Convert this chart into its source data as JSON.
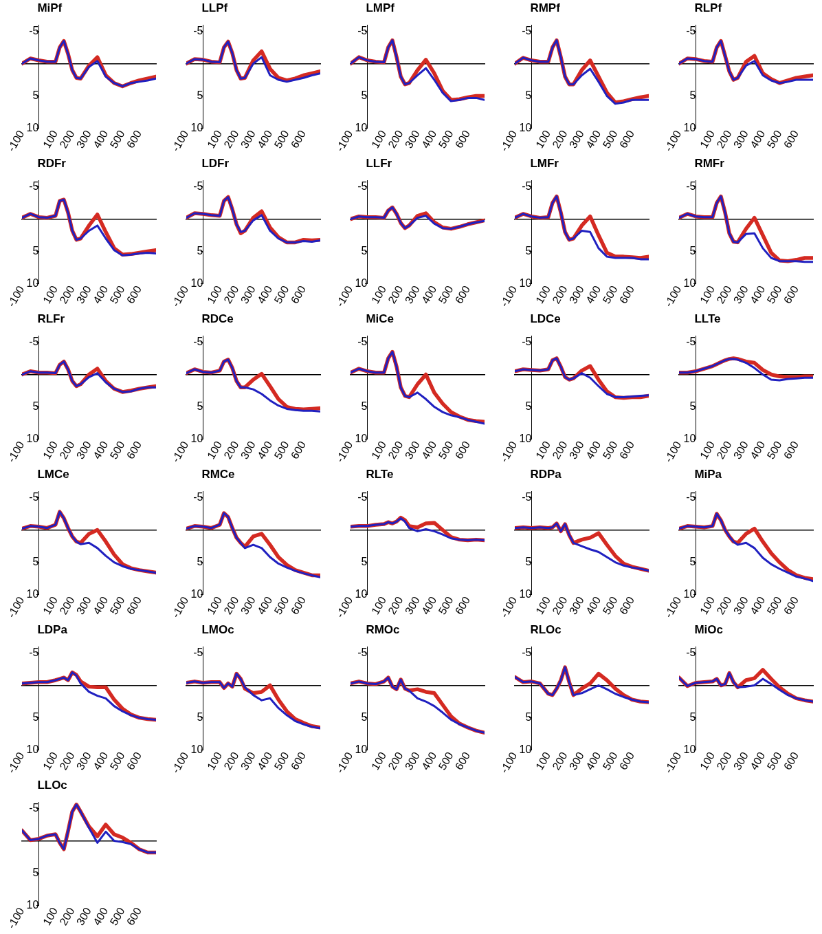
{
  "chart_data": [
    {
      "type": "line",
      "title": "MiPf",
      "x": [
        -100,
        -50,
        0,
        50,
        100,
        125,
        150,
        175,
        200,
        225,
        250,
        300,
        350,
        400,
        450,
        500,
        550,
        600,
        650,
        700
      ],
      "xlim": [
        -100,
        700
      ],
      "xticks": [
        -100,
        100,
        200,
        300,
        400,
        500,
        600
      ],
      "ylim": [
        10,
        -6
      ],
      "yticks": [
        -5,
        5,
        10
      ],
      "series": [
        {
          "color": "#d42a22",
          "values": [
            0,
            -0.8,
            -0.5,
            -0.3,
            -0.3,
            -2.5,
            -3.5,
            -1.5,
            1.0,
            2.2,
            2.3,
            0.3,
            -1.0,
            1.8,
            3.0,
            3.5,
            3.0,
            2.6,
            2.3,
            2.0
          ]
        },
        {
          "color": "#2020c0",
          "values": [
            0,
            -0.8,
            -0.5,
            -0.3,
            -0.3,
            -2.5,
            -3.5,
            -1.5,
            1.0,
            2.2,
            2.3,
            0.5,
            -0.4,
            2.0,
            3.0,
            3.5,
            3.0,
            2.8,
            2.6,
            2.3
          ]
        }
      ]
    },
    {
      "type": "line",
      "title": "LLPf",
      "x": [
        -100,
        -50,
        0,
        50,
        100,
        125,
        150,
        175,
        200,
        225,
        250,
        300,
        350,
        400,
        450,
        500,
        550,
        600,
        650,
        700
      ],
      "xlim": [
        -100,
        700
      ],
      "xticks": [
        -100,
        100,
        200,
        300,
        400,
        500,
        600
      ],
      "ylim": [
        10,
        -6
      ],
      "yticks": [
        -5,
        5,
        10
      ],
      "series": [
        {
          "color": "#d42a22",
          "values": [
            0,
            -0.7,
            -0.6,
            -0.3,
            -0.2,
            -2.5,
            -3.4,
            -1.6,
            1.0,
            2.3,
            2.2,
            -0.5,
            -1.9,
            0.8,
            2.2,
            2.6,
            2.3,
            1.8,
            1.5,
            1.2
          ]
        },
        {
          "color": "#2020c0",
          "values": [
            0,
            -0.7,
            -0.6,
            -0.3,
            -0.2,
            -2.5,
            -3.4,
            -1.6,
            1.0,
            2.3,
            2.2,
            0.0,
            -1.0,
            1.8,
            2.5,
            2.8,
            2.5,
            2.2,
            1.8,
            1.5
          ]
        }
      ]
    },
    {
      "type": "line",
      "title": "LMPf",
      "x": [
        -100,
        -50,
        0,
        50,
        100,
        125,
        150,
        175,
        200,
        225,
        250,
        300,
        350,
        400,
        450,
        500,
        550,
        600,
        650,
        700
      ],
      "xlim": [
        -100,
        700
      ],
      "xticks": [
        -100,
        100,
        200,
        300,
        400,
        500,
        600
      ],
      "ylim": [
        10,
        -6
      ],
      "yticks": [
        -5,
        5,
        10
      ],
      "series": [
        {
          "color": "#d42a22",
          "values": [
            0,
            -1.0,
            -0.5,
            -0.3,
            -0.2,
            -2.5,
            -3.6,
            -1.0,
            2.0,
            3.2,
            3.0,
            1.0,
            -0.6,
            1.5,
            4.2,
            5.6,
            5.5,
            5.2,
            5.0,
            5.0
          ]
        },
        {
          "color": "#2020c0",
          "values": [
            0,
            -1.0,
            -0.5,
            -0.3,
            -0.2,
            -2.5,
            -3.6,
            -1.0,
            2.0,
            3.2,
            3.0,
            1.8,
            0.7,
            2.5,
            4.5,
            5.8,
            5.6,
            5.3,
            5.3,
            5.6
          ]
        }
      ]
    },
    {
      "type": "line",
      "title": "RMPf",
      "x": [
        -100,
        -50,
        0,
        50,
        100,
        125,
        150,
        175,
        200,
        225,
        250,
        300,
        350,
        400,
        450,
        500,
        550,
        600,
        650,
        700
      ],
      "xlim": [
        -100,
        700
      ],
      "xticks": [
        -100,
        100,
        200,
        300,
        400,
        500,
        600
      ],
      "ylim": [
        10,
        -6
      ],
      "yticks": [
        -5,
        5,
        10
      ],
      "series": [
        {
          "color": "#d42a22",
          "values": [
            0,
            -0.9,
            -0.5,
            -0.3,
            -0.3,
            -2.5,
            -3.6,
            -1.0,
            2.0,
            3.2,
            3.2,
            1.0,
            -0.5,
            2.0,
            4.5,
            6.0,
            5.8,
            5.5,
            5.2,
            5.0
          ]
        },
        {
          "color": "#2020c0",
          "values": [
            0,
            -0.9,
            -0.5,
            -0.3,
            -0.3,
            -2.5,
            -3.6,
            -1.0,
            2.0,
            3.2,
            3.2,
            1.8,
            0.8,
            2.8,
            5.0,
            6.2,
            6.0,
            5.6,
            5.6,
            5.6
          ]
        }
      ]
    },
    {
      "type": "line",
      "title": "RLPf",
      "x": [
        -100,
        -50,
        0,
        50,
        100,
        125,
        150,
        175,
        200,
        225,
        250,
        300,
        350,
        400,
        450,
        500,
        550,
        600,
        650,
        700
      ],
      "xlim": [
        -100,
        700
      ],
      "xticks": [
        -100,
        100,
        200,
        300,
        400,
        500,
        600
      ],
      "ylim": [
        10,
        -6
      ],
      "yticks": [
        -5,
        5,
        10
      ],
      "series": [
        {
          "color": "#d42a22",
          "values": [
            0,
            -0.8,
            -0.7,
            -0.4,
            -0.3,
            -2.5,
            -3.5,
            -1.2,
            1.2,
            2.5,
            2.2,
            -0.3,
            -1.2,
            1.5,
            2.4,
            3.0,
            2.6,
            2.2,
            2.0,
            1.8
          ]
        },
        {
          "color": "#2020c0",
          "values": [
            0,
            -0.8,
            -0.7,
            -0.4,
            -0.3,
            -2.5,
            -3.5,
            -1.2,
            1.2,
            2.5,
            2.2,
            0.3,
            -0.4,
            1.8,
            2.6,
            3.0,
            2.8,
            2.5,
            2.5,
            2.5
          ]
        }
      ]
    },
    {
      "type": "line",
      "title": "RDFr",
      "x": [
        -100,
        -50,
        0,
        50,
        100,
        125,
        150,
        175,
        200,
        225,
        250,
        300,
        350,
        400,
        450,
        500,
        550,
        600,
        650,
        700
      ],
      "xlim": [
        -100,
        700
      ],
      "xticks": [
        -100,
        100,
        200,
        300,
        400,
        500,
        600
      ],
      "ylim": [
        10,
        -6
      ],
      "yticks": [
        -5,
        5,
        10
      ],
      "series": [
        {
          "color": "#d42a22",
          "values": [
            -0.2,
            -0.8,
            -0.3,
            -0.2,
            -0.5,
            -2.8,
            -3.0,
            -1.0,
            1.8,
            3.2,
            3.0,
            1.0,
            -0.7,
            2.0,
            4.5,
            5.5,
            5.4,
            5.2,
            5.0,
            4.8
          ]
        },
        {
          "color": "#2020c0",
          "values": [
            -0.2,
            -0.8,
            -0.3,
            -0.2,
            -0.5,
            -2.8,
            -3.0,
            -1.0,
            1.8,
            3.2,
            3.0,
            1.8,
            1.0,
            3.0,
            4.8,
            5.6,
            5.5,
            5.3,
            5.2,
            5.3
          ]
        }
      ]
    },
    {
      "type": "line",
      "title": "LDFr",
      "x": [
        -100,
        -50,
        0,
        50,
        100,
        125,
        150,
        175,
        200,
        225,
        250,
        300,
        350,
        400,
        450,
        500,
        550,
        600,
        650,
        700
      ],
      "xlim": [
        -100,
        700
      ],
      "xticks": [
        -100,
        100,
        200,
        300,
        400,
        500,
        600
      ],
      "ylim": [
        10,
        -6
      ],
      "yticks": [
        -5,
        5,
        10
      ],
      "series": [
        {
          "color": "#d42a22",
          "values": [
            -0.2,
            -0.9,
            -0.8,
            -0.6,
            -0.5,
            -2.8,
            -3.4,
            -1.5,
            0.8,
            2.2,
            1.8,
            -0.2,
            -1.2,
            1.3,
            2.8,
            3.6,
            3.6,
            3.2,
            3.3,
            3.2
          ]
        },
        {
          "color": "#2020c0",
          "values": [
            -0.2,
            -0.9,
            -0.8,
            -0.6,
            -0.5,
            -2.8,
            -3.4,
            -1.5,
            0.8,
            2.0,
            1.8,
            0.2,
            -0.6,
            1.8,
            3.0,
            3.6,
            3.6,
            3.4,
            3.5,
            3.3
          ]
        }
      ]
    },
    {
      "type": "line",
      "title": "LLFr",
      "x": [
        -100,
        -50,
        0,
        50,
        100,
        125,
        150,
        175,
        200,
        225,
        250,
        300,
        350,
        400,
        450,
        500,
        550,
        600,
        650,
        700
      ],
      "xlim": [
        -100,
        700
      ],
      "xticks": [
        -100,
        100,
        200,
        300,
        400,
        500,
        600
      ],
      "ylim": [
        10,
        -6
      ],
      "yticks": [
        -5,
        5,
        10
      ],
      "series": [
        {
          "color": "#d42a22",
          "values": [
            0,
            -0.4,
            -0.3,
            -0.3,
            -0.2,
            -1.3,
            -1.8,
            -0.8,
            0.6,
            1.4,
            1.0,
            -0.5,
            -0.9,
            0.5,
            1.3,
            1.5,
            1.2,
            0.8,
            0.5,
            0.2
          ]
        },
        {
          "color": "#2020c0",
          "values": [
            0,
            -0.4,
            -0.3,
            -0.3,
            -0.2,
            -1.3,
            -1.8,
            -0.8,
            0.6,
            1.4,
            1.0,
            -0.2,
            -0.5,
            0.7,
            1.4,
            1.5,
            1.2,
            0.8,
            0.5,
            0.3
          ]
        }
      ]
    },
    {
      "type": "line",
      "title": "LMFr",
      "x": [
        -100,
        -50,
        0,
        50,
        100,
        125,
        150,
        175,
        200,
        225,
        250,
        300,
        350,
        400,
        450,
        500,
        550,
        600,
        650,
        700
      ],
      "xlim": [
        -100,
        700
      ],
      "xticks": [
        -100,
        100,
        200,
        300,
        400,
        500,
        600
      ],
      "ylim": [
        10,
        -6
      ],
      "yticks": [
        -5,
        5,
        10
      ],
      "series": [
        {
          "color": "#d42a22",
          "values": [
            -0.2,
            -0.8,
            -0.4,
            -0.2,
            -0.3,
            -2.5,
            -3.5,
            -1.0,
            2.0,
            3.2,
            3.0,
            1.0,
            -0.4,
            2.5,
            5.2,
            5.8,
            5.8,
            5.9,
            6.0,
            5.8
          ]
        },
        {
          "color": "#2020c0",
          "values": [
            -0.2,
            -0.8,
            -0.4,
            -0.2,
            -0.3,
            -2.5,
            -3.5,
            -1.0,
            2.0,
            3.2,
            3.0,
            1.8,
            2.0,
            4.5,
            5.8,
            6.0,
            6.0,
            6.0,
            6.2,
            6.2
          ]
        }
      ]
    },
    {
      "type": "line",
      "title": "RMFr",
      "x": [
        -100,
        -50,
        0,
        50,
        100,
        125,
        150,
        175,
        200,
        225,
        250,
        300,
        350,
        400,
        450,
        500,
        550,
        600,
        650,
        700
      ],
      "xlim": [
        -100,
        700
      ],
      "xticks": [
        -100,
        100,
        200,
        300,
        400,
        500,
        600
      ],
      "ylim": [
        10,
        -6
      ],
      "yticks": [
        -5,
        5,
        10
      ],
      "series": [
        {
          "color": "#d42a22",
          "values": [
            -0.2,
            -0.8,
            -0.4,
            -0.3,
            -0.3,
            -2.5,
            -3.5,
            -1.0,
            2.2,
            3.5,
            3.6,
            1.5,
            -0.2,
            2.5,
            5.2,
            6.4,
            6.5,
            6.3,
            6.0,
            6.0
          ]
        },
        {
          "color": "#2020c0",
          "values": [
            -0.2,
            -0.8,
            -0.4,
            -0.3,
            -0.3,
            -2.5,
            -3.5,
            -1.0,
            2.2,
            3.5,
            3.6,
            2.3,
            2.2,
            4.5,
            6.0,
            6.5,
            6.5,
            6.5,
            6.6,
            6.6
          ]
        }
      ]
    },
    {
      "type": "line",
      "title": "RLFr",
      "x": [
        -100,
        -50,
        0,
        50,
        100,
        125,
        150,
        175,
        200,
        225,
        250,
        300,
        350,
        400,
        450,
        500,
        550,
        600,
        650,
        700
      ],
      "xlim": [
        -100,
        700
      ],
      "xticks": [
        -100,
        100,
        200,
        300,
        400,
        500,
        600
      ],
      "ylim": [
        10,
        -6
      ],
      "yticks": [
        -5,
        5,
        10
      ],
      "series": [
        {
          "color": "#d42a22",
          "values": [
            0,
            -0.5,
            -0.3,
            -0.3,
            -0.2,
            -1.5,
            -2.0,
            -0.8,
            1.0,
            1.8,
            1.5,
            0.0,
            -0.9,
            1.0,
            2.2,
            2.7,
            2.5,
            2.2,
            2.0,
            1.8
          ]
        },
        {
          "color": "#2020c0",
          "values": [
            0,
            -0.5,
            -0.3,
            -0.3,
            -0.2,
            -1.5,
            -2.0,
            -0.8,
            1.0,
            1.8,
            1.5,
            0.4,
            -0.2,
            1.2,
            2.2,
            2.7,
            2.6,
            2.2,
            2.0,
            2.0
          ]
        }
      ]
    },
    {
      "type": "line",
      "title": "RDCe",
      "x": [
        -100,
        -50,
        0,
        50,
        100,
        125,
        150,
        175,
        200,
        225,
        250,
        300,
        350,
        400,
        450,
        500,
        550,
        600,
        650,
        700
      ],
      "xlim": [
        -100,
        700
      ],
      "xticks": [
        -100,
        100,
        200,
        300,
        400,
        500,
        600
      ],
      "ylim": [
        10,
        -6
      ],
      "yticks": [
        -5,
        5,
        10
      ],
      "series": [
        {
          "color": "#d42a22",
          "values": [
            -0.2,
            -0.8,
            -0.4,
            -0.3,
            -0.6,
            -2.0,
            -2.3,
            -1.0,
            1.0,
            2.0,
            2.0,
            0.8,
            -0.1,
            1.8,
            3.8,
            5.0,
            5.3,
            5.4,
            5.3,
            5.2
          ]
        },
        {
          "color": "#2020c0",
          "values": [
            -0.2,
            -0.8,
            -0.4,
            -0.3,
            -0.6,
            -2.0,
            -2.3,
            -1.0,
            1.0,
            2.0,
            2.0,
            2.3,
            3.0,
            4.0,
            4.8,
            5.3,
            5.5,
            5.6,
            5.6,
            5.7
          ]
        }
      ]
    },
    {
      "type": "line",
      "title": "MiCe",
      "x": [
        -100,
        -50,
        0,
        50,
        100,
        125,
        150,
        175,
        200,
        225,
        250,
        300,
        350,
        400,
        450,
        500,
        550,
        600,
        650,
        700
      ],
      "xlim": [
        -100,
        700
      ],
      "xticks": [
        -100,
        100,
        200,
        300,
        400,
        500,
        600
      ],
      "ylim": [
        10,
        -6
      ],
      "yticks": [
        -5,
        5,
        10
      ],
      "series": [
        {
          "color": "#d42a22",
          "values": [
            -0.3,
            -0.9,
            -0.5,
            -0.3,
            -0.3,
            -2.5,
            -3.5,
            -1.2,
            2.0,
            3.3,
            3.5,
            1.5,
            0.0,
            2.8,
            4.5,
            5.8,
            6.5,
            7.0,
            7.2,
            7.3
          ]
        },
        {
          "color": "#2020c0",
          "values": [
            -0.3,
            -0.9,
            -0.5,
            -0.3,
            -0.3,
            -2.5,
            -3.5,
            -1.2,
            2.0,
            3.3,
            3.5,
            2.8,
            3.8,
            5.0,
            5.8,
            6.3,
            6.6,
            7.0,
            7.3,
            7.6
          ]
        }
      ]
    },
    {
      "type": "line",
      "title": "LDCe",
      "x": [
        -100,
        -50,
        0,
        50,
        100,
        125,
        150,
        175,
        200,
        225,
        250,
        300,
        350,
        400,
        450,
        500,
        550,
        600,
        650,
        700
      ],
      "xlim": [
        -100,
        700
      ],
      "xticks": [
        -100,
        100,
        200,
        300,
        400,
        500,
        600
      ],
      "ylim": [
        10,
        -6
      ],
      "yticks": [
        -5,
        5,
        10
      ],
      "series": [
        {
          "color": "#d42a22",
          "values": [
            -0.5,
            -0.8,
            -0.7,
            -0.6,
            -0.8,
            -2.2,
            -2.5,
            -1.2,
            0.4,
            0.8,
            0.6,
            -0.6,
            -1.3,
            0.8,
            2.6,
            3.5,
            3.6,
            3.5,
            3.5,
            3.3
          ]
        },
        {
          "color": "#2020c0",
          "values": [
            -0.5,
            -0.8,
            -0.7,
            -0.6,
            -0.8,
            -2.2,
            -2.5,
            -1.2,
            0.4,
            0.8,
            0.6,
            -0.2,
            0.5,
            1.8,
            3.0,
            3.5,
            3.5,
            3.4,
            3.3,
            3.2
          ]
        }
      ]
    },
    {
      "type": "line",
      "title": "LLTe",
      "x": [
        -100,
        -50,
        0,
        50,
        100,
        125,
        150,
        175,
        200,
        225,
        250,
        300,
        350,
        400,
        450,
        500,
        550,
        600,
        650,
        700
      ],
      "xlim": [
        -100,
        700
      ],
      "xticks": [
        -100,
        100,
        200,
        300,
        400,
        500,
        600
      ],
      "ylim": [
        10,
        -6
      ],
      "yticks": [
        -5,
        5,
        10
      ],
      "series": [
        {
          "color": "#d42a22",
          "values": [
            -0.3,
            -0.3,
            -0.5,
            -0.9,
            -1.3,
            -1.6,
            -1.9,
            -2.2,
            -2.4,
            -2.5,
            -2.4,
            -2.0,
            -1.8,
            -0.7,
            0.0,
            0.3,
            0.4,
            0.4,
            0.3,
            0.3
          ]
        },
        {
          "color": "#2020c0",
          "values": [
            -0.3,
            -0.3,
            -0.5,
            -0.9,
            -1.3,
            -1.6,
            -1.9,
            -2.2,
            -2.4,
            -2.4,
            -2.3,
            -1.8,
            -1.0,
            0.0,
            0.8,
            0.9,
            0.7,
            0.6,
            0.5,
            0.5
          ]
        }
      ]
    },
    {
      "type": "line",
      "title": "LMCe",
      "x": [
        -100,
        -50,
        0,
        50,
        100,
        125,
        150,
        175,
        200,
        225,
        250,
        300,
        350,
        400,
        450,
        500,
        550,
        600,
        650,
        700
      ],
      "xlim": [
        -100,
        700
      ],
      "xticks": [
        -100,
        100,
        200,
        300,
        400,
        500,
        600
      ],
      "ylim": [
        10,
        -6
      ],
      "yticks": [
        -5,
        5,
        10
      ],
      "series": [
        {
          "color": "#d42a22",
          "values": [
            -0.2,
            -0.6,
            -0.5,
            -0.3,
            -0.8,
            -2.8,
            -1.8,
            -0.3,
            1.0,
            1.8,
            2.0,
            0.6,
            0.0,
            1.8,
            3.8,
            5.3,
            5.9,
            6.2,
            6.4,
            6.6
          ]
        },
        {
          "color": "#2020c0",
          "values": [
            -0.2,
            -0.6,
            -0.5,
            -0.3,
            -0.8,
            -2.8,
            -1.8,
            -0.3,
            1.0,
            1.8,
            2.2,
            2.0,
            2.8,
            4.0,
            5.0,
            5.6,
            6.0,
            6.2,
            6.4,
            6.6
          ]
        }
      ]
    },
    {
      "type": "line",
      "title": "RMCe",
      "x": [
        -100,
        -50,
        0,
        50,
        100,
        125,
        150,
        175,
        200,
        225,
        250,
        300,
        350,
        400,
        450,
        500,
        550,
        600,
        650,
        700
      ],
      "xlim": [
        -100,
        700
      ],
      "xticks": [
        -100,
        100,
        200,
        300,
        400,
        500,
        600
      ],
      "ylim": [
        10,
        -6
      ],
      "yticks": [
        -5,
        5,
        10
      ],
      "series": [
        {
          "color": "#d42a22",
          "values": [
            -0.2,
            -0.6,
            -0.5,
            -0.3,
            -0.8,
            -2.6,
            -2.0,
            -0.3,
            1.2,
            2.0,
            2.6,
            1.0,
            0.6,
            2.3,
            4.2,
            5.4,
            6.2,
            6.6,
            7.0,
            7.0
          ]
        },
        {
          "color": "#2020c0",
          "values": [
            -0.2,
            -0.6,
            -0.5,
            -0.3,
            -0.8,
            -2.6,
            -2.0,
            -0.3,
            1.2,
            2.0,
            2.8,
            2.3,
            2.8,
            4.2,
            5.2,
            5.8,
            6.3,
            6.7,
            7.0,
            7.3
          ]
        }
      ]
    },
    {
      "type": "line",
      "title": "RLTe",
      "x": [
        -100,
        -50,
        0,
        50,
        100,
        125,
        150,
        175,
        200,
        225,
        250,
        300,
        350,
        400,
        450,
        500,
        550,
        600,
        650,
        700
      ],
      "xlim": [
        -100,
        700
      ],
      "xticks": [
        -100,
        100,
        200,
        300,
        400,
        500,
        600
      ],
      "ylim": [
        10,
        -6
      ],
      "yticks": [
        -5,
        5,
        10
      ],
      "series": [
        {
          "color": "#d42a22",
          "values": [
            -0.5,
            -0.6,
            -0.6,
            -0.8,
            -0.9,
            -1.2,
            -1.0,
            -1.3,
            -1.9,
            -1.5,
            -0.6,
            -0.4,
            -1.0,
            -1.1,
            0.0,
            1.1,
            1.5,
            1.6,
            1.5,
            1.6
          ]
        },
        {
          "color": "#2020c0",
          "values": [
            -0.5,
            -0.6,
            -0.6,
            -0.8,
            -0.9,
            -1.2,
            -1.0,
            -1.3,
            -1.8,
            -1.3,
            -0.3,
            0.2,
            -0.1,
            0.2,
            0.7,
            1.3,
            1.5,
            1.6,
            1.5,
            1.6
          ]
        }
      ]
    },
    {
      "type": "line",
      "title": "RDPa",
      "x": [
        -100,
        -50,
        0,
        50,
        100,
        125,
        150,
        175,
        200,
        225,
        250,
        300,
        350,
        400,
        450,
        500,
        550,
        600,
        650,
        700
      ],
      "xlim": [
        -100,
        700
      ],
      "xticks": [
        -100,
        100,
        200,
        300,
        400,
        500,
        600
      ],
      "ylim": [
        10,
        -6
      ],
      "yticks": [
        -5,
        5,
        10
      ],
      "series": [
        {
          "color": "#d42a22",
          "values": [
            -0.3,
            -0.4,
            -0.3,
            -0.4,
            -0.3,
            -0.4,
            -1.0,
            0.2,
            -0.9,
            0.8,
            2.0,
            1.5,
            1.2,
            0.5,
            2.3,
            4.0,
            5.2,
            5.7,
            6.0,
            6.3
          ]
        },
        {
          "color": "#2020c0",
          "values": [
            -0.3,
            -0.4,
            -0.3,
            -0.4,
            -0.3,
            -0.4,
            -1.0,
            0.2,
            -0.9,
            0.8,
            2.0,
            2.5,
            3.0,
            3.4,
            4.2,
            5.0,
            5.5,
            5.8,
            6.0,
            6.3
          ]
        }
      ]
    },
    {
      "type": "line",
      "title": "MiPa",
      "x": [
        -100,
        -50,
        0,
        50,
        100,
        125,
        150,
        175,
        200,
        225,
        250,
        300,
        350,
        400,
        450,
        500,
        550,
        600,
        650,
        700
      ],
      "xlim": [
        -100,
        700
      ],
      "xticks": [
        -100,
        100,
        200,
        300,
        400,
        500,
        600
      ],
      "ylim": [
        10,
        -6
      ],
      "yticks": [
        -5,
        5,
        10
      ],
      "series": [
        {
          "color": "#d42a22",
          "values": [
            -0.2,
            -0.6,
            -0.5,
            -0.4,
            -0.6,
            -2.5,
            -1.5,
            0.0,
            1.0,
            1.8,
            2.0,
            0.6,
            -0.2,
            1.8,
            3.6,
            5.0,
            6.2,
            7.0,
            7.4,
            7.6
          ]
        },
        {
          "color": "#2020c0",
          "values": [
            -0.2,
            -0.6,
            -0.5,
            -0.4,
            -0.6,
            -2.5,
            -1.5,
            0.0,
            1.0,
            1.8,
            2.3,
            2.0,
            2.8,
            4.3,
            5.3,
            6.0,
            6.6,
            7.2,
            7.5,
            7.9
          ]
        }
      ]
    },
    {
      "type": "line",
      "title": "LDPa",
      "x": [
        -100,
        -50,
        0,
        50,
        100,
        125,
        150,
        175,
        200,
        225,
        250,
        300,
        350,
        400,
        450,
        500,
        550,
        600,
        650,
        700
      ],
      "xlim": [
        -100,
        700
      ],
      "xticks": [
        -100,
        100,
        200,
        300,
        400,
        500,
        600
      ],
      "ylim": [
        10,
        -6
      ],
      "yticks": [
        -5,
        5,
        10
      ],
      "series": [
        {
          "color": "#d42a22",
          "values": [
            -0.3,
            -0.4,
            -0.5,
            -0.5,
            -0.8,
            -1.0,
            -1.2,
            -0.8,
            -2.0,
            -1.6,
            -0.6,
            0.2,
            0.3,
            0.3,
            2.2,
            3.6,
            4.5,
            5.0,
            5.2,
            5.3
          ]
        },
        {
          "color": "#2020c0",
          "values": [
            -0.3,
            -0.4,
            -0.5,
            -0.5,
            -0.8,
            -1.0,
            -1.2,
            -0.8,
            -2.0,
            -1.5,
            -0.3,
            1.0,
            1.6,
            2.0,
            3.2,
            4.0,
            4.6,
            5.0,
            5.2,
            5.3
          ]
        }
      ]
    },
    {
      "type": "line",
      "title": "LMOc",
      "x": [
        -100,
        -50,
        0,
        50,
        100,
        125,
        150,
        175,
        200,
        225,
        250,
        300,
        350,
        400,
        450,
        500,
        550,
        600,
        650,
        700
      ],
      "xlim": [
        -100,
        700
      ],
      "xticks": [
        -100,
        100,
        200,
        300,
        400,
        500,
        600
      ],
      "ylim": [
        10,
        -6
      ],
      "yticks": [
        -5,
        5,
        10
      ],
      "series": [
        {
          "color": "#d42a22",
          "values": [
            -0.4,
            -0.6,
            -0.4,
            -0.5,
            -0.5,
            0.4,
            -0.3,
            0.2,
            -1.8,
            -1.0,
            0.5,
            1.2,
            1.0,
            0.0,
            2.2,
            4.0,
            5.2,
            5.8,
            6.3,
            6.5
          ]
        },
        {
          "color": "#2020c0",
          "values": [
            -0.4,
            -0.6,
            -0.4,
            -0.5,
            -0.5,
            0.4,
            -0.3,
            0.2,
            -1.8,
            -1.0,
            0.3,
            1.5,
            2.3,
            2.0,
            3.5,
            4.6,
            5.5,
            6.0,
            6.4,
            6.6
          ]
        }
      ]
    },
    {
      "type": "line",
      "title": "RMOc",
      "x": [
        -100,
        -50,
        0,
        50,
        100,
        125,
        150,
        175,
        200,
        225,
        250,
        300,
        350,
        400,
        450,
        500,
        550,
        600,
        650,
        700
      ],
      "xlim": [
        -100,
        700
      ],
      "xticks": [
        -100,
        100,
        200,
        300,
        400,
        500,
        600
      ],
      "ylim": [
        10,
        -6
      ],
      "yticks": [
        -5,
        5,
        10
      ],
      "series": [
        {
          "color": "#d42a22",
          "values": [
            -0.3,
            -0.6,
            -0.3,
            -0.2,
            -0.6,
            -1.2,
            0.2,
            0.6,
            -0.9,
            0.5,
            0.8,
            0.6,
            1.0,
            1.2,
            3.0,
            4.8,
            5.9,
            6.5,
            7.0,
            7.3
          ]
        },
        {
          "color": "#2020c0",
          "values": [
            -0.3,
            -0.6,
            -0.3,
            -0.2,
            -0.6,
            -1.2,
            0.2,
            0.6,
            -0.9,
            0.5,
            0.8,
            2.0,
            2.5,
            3.2,
            4.2,
            5.3,
            6.0,
            6.5,
            7.0,
            7.3
          ]
        }
      ]
    },
    {
      "type": "line",
      "title": "RLOc",
      "x": [
        -100,
        -50,
        0,
        50,
        100,
        125,
        150,
        175,
        200,
        225,
        250,
        300,
        350,
        400,
        450,
        500,
        550,
        600,
        650,
        700
      ],
      "xlim": [
        -100,
        700
      ],
      "xticks": [
        -100,
        100,
        200,
        300,
        400,
        500,
        600
      ],
      "ylim": [
        10,
        -6
      ],
      "yticks": [
        -5,
        5,
        10
      ],
      "series": [
        {
          "color": "#d42a22",
          "values": [
            -1.3,
            -0.5,
            -0.6,
            -0.3,
            1.3,
            1.5,
            0.5,
            -0.8,
            -2.8,
            -0.5,
            1.5,
            0.5,
            -0.3,
            -1.8,
            -0.8,
            0.5,
            1.5,
            2.2,
            2.5,
            2.6
          ]
        },
        {
          "color": "#2020c0",
          "values": [
            -1.3,
            -0.5,
            -0.6,
            -0.3,
            1.3,
            1.5,
            0.5,
            -0.8,
            -2.8,
            -0.5,
            1.5,
            1.2,
            0.6,
            0.0,
            0.6,
            1.3,
            1.8,
            2.2,
            2.5,
            2.6
          ]
        }
      ]
    },
    {
      "type": "line",
      "title": "MiOc",
      "x": [
        -100,
        -50,
        0,
        50,
        100,
        125,
        150,
        175,
        200,
        225,
        250,
        300,
        350,
        400,
        450,
        500,
        550,
        600,
        650,
        700
      ],
      "xlim": [
        -100,
        700
      ],
      "xticks": [
        -100,
        100,
        200,
        300,
        400,
        500,
        600
      ],
      "ylim": [
        10,
        -6
      ],
      "yticks": [
        -5,
        5,
        10
      ],
      "series": [
        {
          "color": "#d42a22",
          "values": [
            -1.2,
            0.1,
            -0.4,
            -0.5,
            -0.6,
            -1.0,
            0.0,
            -0.2,
            -1.9,
            -0.5,
            0.3,
            -0.8,
            -1.1,
            -2.4,
            -1.0,
            0.3,
            1.3,
            2.0,
            2.3,
            2.5
          ]
        },
        {
          "color": "#2020c0",
          "values": [
            -1.2,
            0.1,
            -0.4,
            -0.5,
            -0.6,
            -1.0,
            0.0,
            -0.2,
            -1.9,
            -0.5,
            0.3,
            0.2,
            0.0,
            -1.0,
            -0.2,
            0.7,
            1.5,
            2.0,
            2.3,
            2.5
          ]
        }
      ]
    },
    {
      "type": "line",
      "title": "LLOc",
      "x": [
        -100,
        -50,
        0,
        50,
        100,
        125,
        150,
        175,
        200,
        225,
        250,
        300,
        350,
        400,
        450,
        500,
        550,
        600,
        650,
        700
      ],
      "xlim": [
        -100,
        700
      ],
      "xticks": [
        -100,
        100,
        200,
        300,
        400,
        500,
        600
      ],
      "ylim": [
        10,
        -6
      ],
      "yticks": [
        -5,
        5,
        10
      ],
      "series": [
        {
          "color": "#d42a22",
          "values": [
            -1.6,
            -0.1,
            -0.3,
            -0.8,
            -1.0,
            0.3,
            1.3,
            -1.5,
            -4.5,
            -5.6,
            -4.5,
            -2.2,
            -0.7,
            -2.5,
            -1.0,
            -0.5,
            0.3,
            1.3,
            1.8,
            1.8
          ]
        },
        {
          "color": "#2020c0",
          "values": [
            -1.6,
            -0.1,
            -0.3,
            -0.8,
            -1.0,
            0.3,
            1.3,
            -1.5,
            -4.5,
            -5.6,
            -4.5,
            -2.0,
            0.3,
            -1.4,
            0.0,
            0.2,
            0.5,
            1.3,
            1.8,
            1.8
          ]
        }
      ]
    }
  ]
}
